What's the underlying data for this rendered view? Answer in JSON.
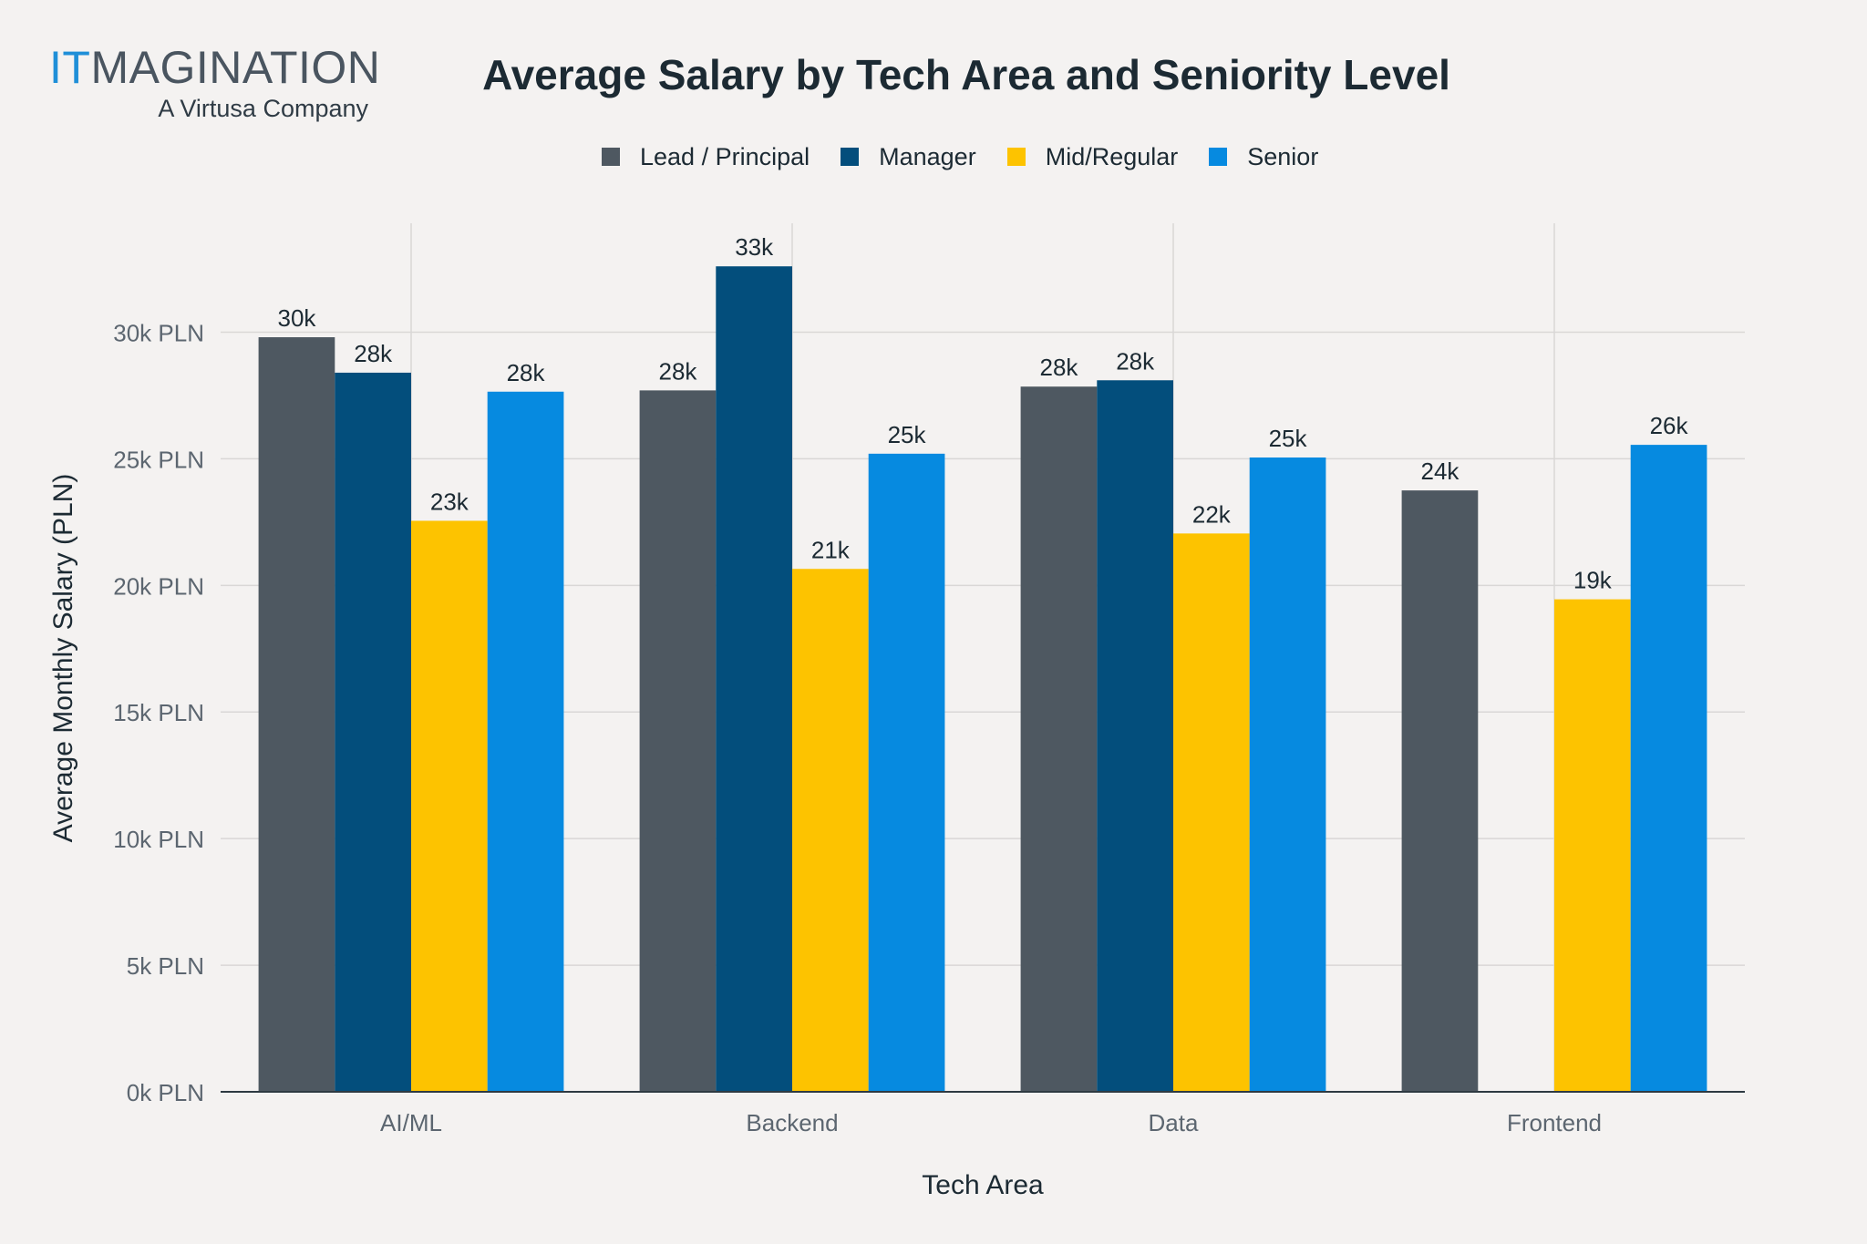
{
  "logo": {
    "main_prefix": "IT",
    "main_rest": "MAGINATION",
    "tagline": "A Virtusa Company"
  },
  "chart_data": {
    "type": "bar",
    "title": "Average Salary by Tech Area and Seniority Level",
    "xlabel": "Tech Area",
    "ylabel": "Average Monthly Salary (PLN)",
    "categories": [
      "AI/ML",
      "Backend",
      "Data",
      "Frontend"
    ],
    "ylim": [
      0,
      34300
    ],
    "yticks": [
      0,
      5000,
      10000,
      15000,
      20000,
      25000,
      30000
    ],
    "ytick_labels": [
      "0k PLN",
      "5k PLN",
      "10k PLN",
      "15k PLN",
      "20k PLN",
      "25k PLN",
      "30k PLN"
    ],
    "grid": true,
    "legend_position": "top-center",
    "series": [
      {
        "name": "Lead / Principal",
        "color": "#4e5861",
        "values": [
          29800,
          27700,
          27850,
          23750
        ],
        "labels": [
          "30k",
          "28k",
          "28k",
          "24k"
        ]
      },
      {
        "name": "Manager",
        "color": "#034e7c",
        "values": [
          28400,
          32600,
          28100,
          null
        ],
        "labels": [
          "28k",
          "33k",
          "28k",
          null
        ]
      },
      {
        "name": "Mid/Regular",
        "color": "#fdc300",
        "values": [
          22550,
          20650,
          22050,
          19450
        ],
        "labels": [
          "23k",
          "21k",
          "22k",
          "19k"
        ]
      },
      {
        "name": "Senior",
        "color": "#068ae0",
        "values": [
          27650,
          25200,
          25050,
          25550
        ],
        "labels": [
          "28k",
          "25k",
          "25k",
          "26k"
        ]
      }
    ]
  }
}
